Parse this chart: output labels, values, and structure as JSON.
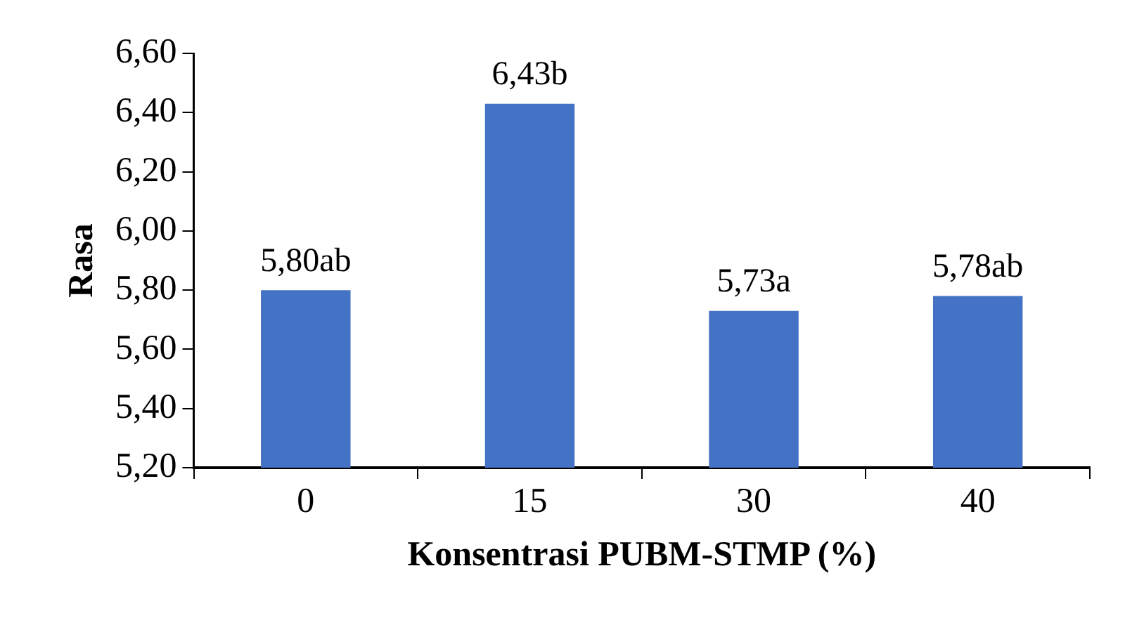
{
  "chart_data": {
    "type": "bar",
    "xlabel": "Konsentrasi PUBM-STMP (%)",
    "ylabel": "Rasa",
    "categories": [
      "0",
      "15",
      "30",
      "40"
    ],
    "values": [
      5.8,
      6.43,
      5.73,
      5.78
    ],
    "value_labels": [
      "5,80ab",
      "6,43b",
      "5,73a",
      "5,78ab"
    ],
    "color": "#4472c4",
    "ylim": [
      5.2,
      6.6
    ],
    "yticks": [
      {
        "value": 5.2,
        "label": "5,20"
      },
      {
        "value": 5.4,
        "label": "5,40"
      },
      {
        "value": 5.6,
        "label": "5,60"
      },
      {
        "value": 5.8,
        "label": "5,80"
      },
      {
        "value": 6.0,
        "label": "6,00"
      },
      {
        "value": 6.2,
        "label": "6,20"
      },
      {
        "value": 6.4,
        "label": "6,40"
      },
      {
        "value": 6.6,
        "label": "6,60"
      }
    ]
  }
}
